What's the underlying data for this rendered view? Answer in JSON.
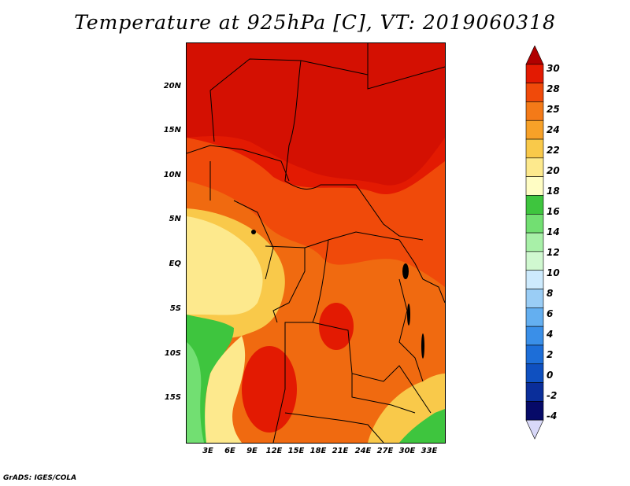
{
  "title": "Temperature at 925hPa [C], VT: 2019060318",
  "footer": "GrADS: IGES/COLA",
  "map": {
    "y_labels": [
      "20N",
      "15N",
      "10N",
      "5N",
      "EQ",
      "5S",
      "10S",
      "15S"
    ],
    "x_labels": [
      "3E",
      "6E",
      "9E",
      "12E",
      "15E",
      "18E",
      "21E",
      "24E",
      "27E",
      "30E",
      "33E"
    ],
    "lat_range": [
      -20,
      25
    ],
    "lon_range": [
      0,
      35
    ]
  },
  "colorbar": {
    "labels": [
      "30",
      "28",
      "25",
      "24",
      "22",
      "20",
      "18",
      "16",
      "14",
      "12",
      "10",
      "8",
      "6",
      "4",
      "2",
      "0",
      "-2",
      "-4"
    ],
    "colors": [
      "#b00000",
      "#e31a02",
      "#f04a0a",
      "#f47a18",
      "#f7a128",
      "#f9c94a",
      "#fde98d",
      "#fffdc4",
      "#3ec53e",
      "#72df72",
      "#a8f0a8",
      "#d0f8d0",
      "#cdeafd",
      "#9acdf5",
      "#64aff0",
      "#3a8fe8",
      "#1d6ed8",
      "#0f50c0",
      "#0a2e9a",
      "#060a68",
      "#d8d8f8"
    ]
  }
}
